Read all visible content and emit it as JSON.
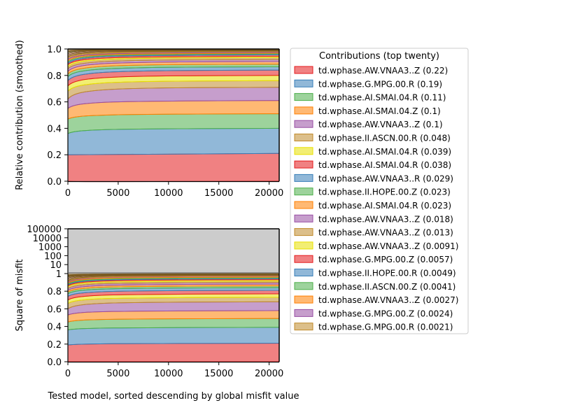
{
  "legend": {
    "title": "Contributions (top twenty)",
    "entries": [
      {
        "label": "td.wphase.AW.VNAA3..Z (0.22)",
        "color": "#e41a1c"
      },
      {
        "label": "td.wphase.G.MPG.00.R (0.19)",
        "color": "#377eb8"
      },
      {
        "label": "td.wphase.AI.SMAI.04.R (0.11)",
        "color": "#4daf4a"
      },
      {
        "label": "td.wphase.AI.SMAI.04.Z (0.1)",
        "color": "#ff7f00"
      },
      {
        "label": "td.wphase.AW.VNAA3..Z (0.1)",
        "color": "#984ea3"
      },
      {
        "label": "td.wphase.II.ASCN.00.R (0.048)",
        "color": "#c08a2a"
      },
      {
        "label": "td.wphase.AI.SMAI.04.R (0.039)",
        "color": "#e8e000"
      },
      {
        "label": "td.wphase.AI.SMAI.04.R (0.038)",
        "color": "#e41a1c"
      },
      {
        "label": "td.wphase.AW.VNAA3..R (0.029)",
        "color": "#377eb8"
      },
      {
        "label": "td.wphase.II.HOPE.00.Z (0.023)",
        "color": "#4daf4a"
      },
      {
        "label": "td.wphase.AI.SMAI.04.R (0.023)",
        "color": "#ff7f00"
      },
      {
        "label": "td.wphase.AW.VNAA3..Z (0.018)",
        "color": "#984ea3"
      },
      {
        "label": "td.wphase.AW.VNAA3..Z (0.013)",
        "color": "#c08a2a"
      },
      {
        "label": "td.wphase.AW.VNAA3..Z (0.0091)",
        "color": "#e8e000"
      },
      {
        "label": "td.wphase.G.MPG.00.Z (0.0057)",
        "color": "#e41a1c"
      },
      {
        "label": "td.wphase.II.HOPE.00.R (0.0049)",
        "color": "#377eb8"
      },
      {
        "label": "td.wphase.II.ASCN.00.Z (0.0041)",
        "color": "#4daf4a"
      },
      {
        "label": "td.wphase.AW.VNAA3..Z (0.0027)",
        "color": "#ff7f00"
      },
      {
        "label": "td.wphase.G.MPG.00.Z (0.0024)",
        "color": "#984ea3"
      },
      {
        "label": "td.wphase.G.MPG.00.R (0.0021)",
        "color": "#c08a2a"
      }
    ]
  },
  "chart_data": [
    {
      "type": "area",
      "ylabel": "Relative contribution (smoothed)",
      "xlabel": "",
      "xlim": [
        0,
        21000
      ],
      "ylim": [
        0,
        1.0
      ],
      "xticks": [
        "0",
        "5000",
        "10000",
        "15000",
        "20000"
      ],
      "yticks": [
        "0.0",
        "0.2",
        "0.4",
        "0.6",
        "0.8",
        "1.0"
      ],
      "stacked_boundaries_at_x": {
        "x": [
          0,
          21000
        ],
        "boundaries_start": [
          0.2,
          0.36,
          0.47,
          0.55,
          0.62,
          0.68,
          0.72,
          0.76,
          0.79,
          0.81,
          0.83,
          0.85,
          0.865,
          0.88,
          0.89,
          0.9,
          0.91,
          0.92,
          0.93,
          0.94
        ],
        "boundaries_end": [
          0.21,
          0.4,
          0.51,
          0.61,
          0.71,
          0.76,
          0.8,
          0.84,
          0.865,
          0.885,
          0.905,
          0.92,
          0.935,
          0.945,
          0.955,
          0.962,
          0.968,
          0.974,
          0.98,
          0.985
        ]
      },
      "remainder_top": 1.0
    },
    {
      "type": "area",
      "ylabel": "Square of misfit",
      "xlabel": "Tested model, sorted descending by global misfit value",
      "xlim": [
        0,
        21000
      ],
      "ylim_linear": [
        0,
        1.0
      ],
      "ylim_log": [
        1,
        100000
      ],
      "xticks": [
        "0",
        "5000",
        "10000",
        "15000",
        "20000"
      ],
      "yticks_linear": [
        "0.0",
        "0.2",
        "0.4",
        "0.6",
        "0.8",
        "1"
      ],
      "yticks_log": [
        "10",
        "100",
        "1000",
        "10000",
        "100000"
      ],
      "stacked_boundaries_at_x": {
        "x": [
          0,
          21000
        ],
        "boundaries_start": [
          0.19,
          0.36,
          0.45,
          0.53,
          0.6,
          0.66,
          0.7,
          0.74,
          0.77,
          0.79,
          0.81,
          0.83,
          0.85,
          0.86,
          0.87,
          0.88,
          0.89,
          0.9,
          0.91,
          0.92
        ],
        "boundaries_end": [
          0.21,
          0.39,
          0.49,
          0.58,
          0.68,
          0.73,
          0.77,
          0.81,
          0.84,
          0.86,
          0.88,
          0.9,
          0.915,
          0.93,
          0.94,
          0.95,
          0.96,
          0.97,
          0.975,
          0.98
        ]
      },
      "remainder_top": 1.0,
      "grey_region_color": "#cccccc"
    }
  ]
}
